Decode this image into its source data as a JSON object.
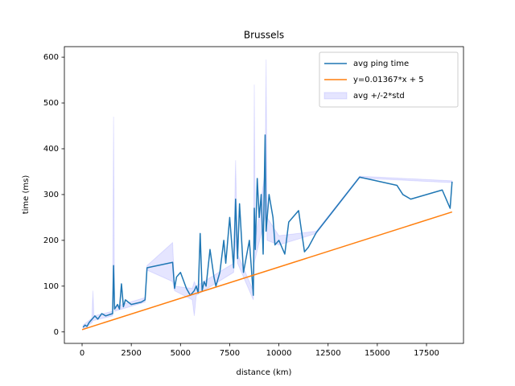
{
  "chart_data": {
    "type": "line",
    "title": "Brussels",
    "xlabel": "distance (km)",
    "ylabel": "time (ms)",
    "xlim": [
      -900,
      19380
    ],
    "ylim": [
      -25,
      623
    ],
    "xticks": [
      0,
      2500,
      5000,
      7500,
      10000,
      12500,
      15000,
      17500
    ],
    "yticks": [
      0,
      100,
      200,
      300,
      400,
      500,
      600
    ],
    "legend": "upper right",
    "series": [
      {
        "name": "avg ping time",
        "color": "#1f77b4",
        "x": [
          50,
          150,
          250,
          350,
          450,
          550,
          650,
          800,
          1000,
          1200,
          1400,
          1550,
          1600,
          1650,
          1800,
          1900,
          2000,
          2100,
          2200,
          2500,
          3000,
          3200,
          3300,
          4600,
          4700,
          4800,
          5000,
          5300,
          5500,
          5700,
          5800,
          5900,
          6000,
          6100,
          6200,
          6300,
          6500,
          6700,
          6800,
          7000,
          7200,
          7300,
          7500,
          7700,
          7800,
          7900,
          8000,
          8200,
          8500,
          8700,
          8750,
          8800,
          8900,
          9000,
          9100,
          9200,
          9300,
          9350,
          9500,
          9700,
          9800,
          10000,
          10300,
          10500,
          11000,
          11300,
          11500,
          11900,
          14100,
          16000,
          16300,
          16700,
          18300,
          18700,
          18800
        ],
        "values": [
          10,
          15,
          12,
          20,
          25,
          30,
          35,
          28,
          40,
          35,
          38,
          40,
          145,
          50,
          60,
          50,
          105,
          55,
          70,
          60,
          65,
          70,
          140,
          152,
          95,
          120,
          130,
          95,
          80,
          90,
          100,
          85,
          215,
          90,
          110,
          100,
          180,
          120,
          100,
          130,
          200,
          150,
          250,
          140,
          290,
          160,
          280,
          130,
          200,
          80,
          270,
          180,
          335,
          250,
          300,
          170,
          430,
          220,
          300,
          250,
          190,
          200,
          170,
          240,
          265,
          175,
          185,
          217,
          338,
          320,
          300,
          290,
          310,
          270,
          328
        ]
      },
      {
        "name": "y=0.01367*x + 5",
        "color": "#ff7f0e",
        "x": [
          0,
          18800
        ],
        "values": [
          5,
          262
        ]
      },
      {
        "name": "avg +/-2*std",
        "color": "#0000ff",
        "band": true,
        "x": [
          50,
          500,
          550,
          600,
          1550,
          1600,
          1650,
          3200,
          3300,
          4600,
          4700,
          5600,
          5700,
          5800,
          7700,
          7800,
          7900,
          8700,
          8750,
          8800,
          9300,
          9350,
          9400,
          10000,
          11900,
          14100,
          18800
        ],
        "lower": [
          5,
          20,
          25,
          25,
          35,
          100,
          45,
          65,
          135,
          110,
          90,
          70,
          35,
          80,
          130,
          200,
          150,
          70,
          150,
          160,
          250,
          300,
          200,
          190,
          215,
          336,
          326
        ],
        "upper": [
          15,
          30,
          90,
          35,
          45,
          470,
          55,
          75,
          145,
          195,
          100,
          95,
          110,
          100,
          150,
          375,
          170,
          90,
          540,
          200,
          350,
          595,
          250,
          210,
          220,
          340,
          330
        ]
      }
    ]
  }
}
